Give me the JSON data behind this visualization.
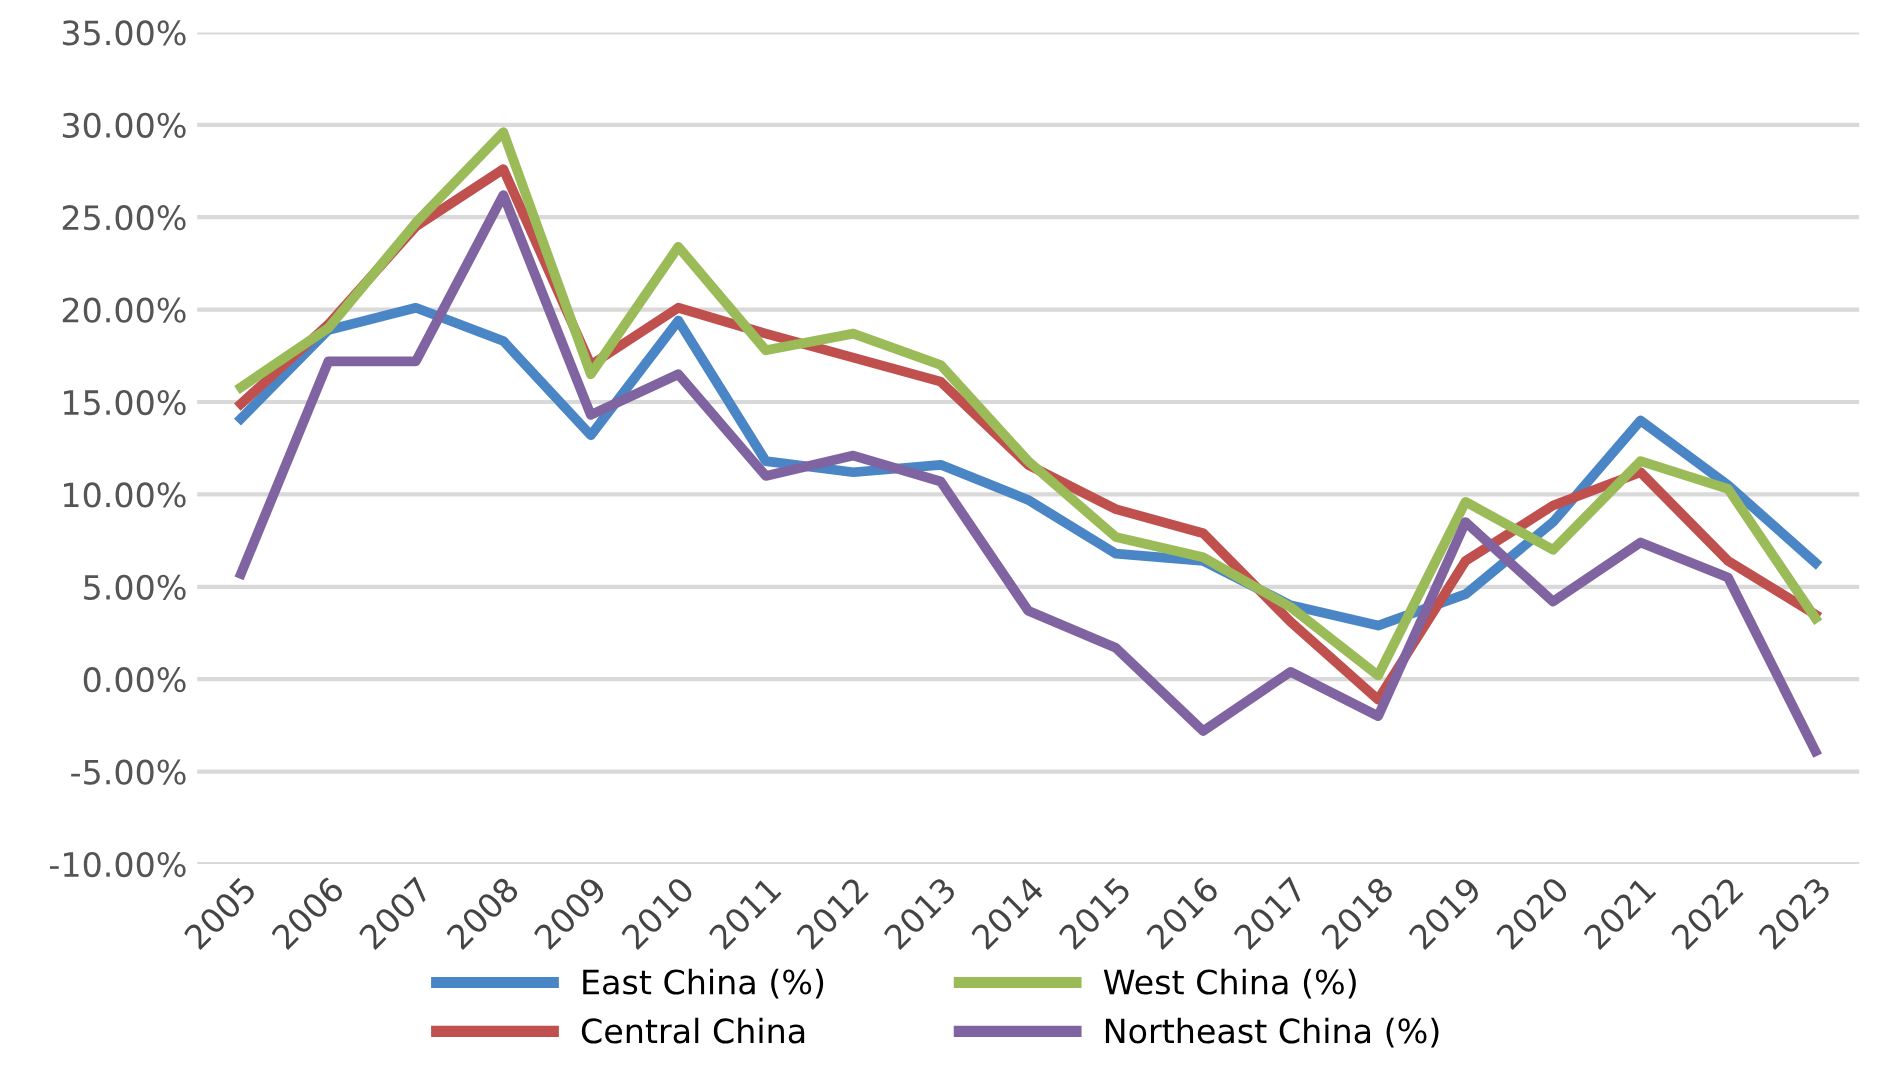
{
  "chart_data": {
    "type": "line",
    "categories": [
      "2005",
      "2006",
      "2007",
      "2008",
      "2009",
      "2010",
      "2011",
      "2012",
      "2013",
      "2014",
      "2015",
      "2016",
      "2017",
      "2018",
      "2019",
      "2020",
      "2021",
      "2022",
      "2023"
    ],
    "series": [
      {
        "name": "East China (%)",
        "color": "#4a86c6",
        "values": [
          14.1,
          18.9,
          20.1,
          18.3,
          13.2,
          19.4,
          11.8,
          11.2,
          11.6,
          9.7,
          6.8,
          6.4,
          4.0,
          2.9,
          4.6,
          8.5,
          14.0,
          10.5,
          6.3
        ]
      },
      {
        "name": "Central China",
        "color": "#c0504d",
        "values": [
          14.9,
          19.2,
          24.5,
          27.6,
          17.0,
          20.1,
          18.7,
          17.4,
          16.1,
          11.6,
          9.2,
          7.9,
          3.1,
          -1.1,
          6.4,
          9.4,
          11.2,
          6.4,
          3.5
        ]
      },
      {
        "name": "West China (%)",
        "color": "#9bbb59",
        "values": [
          15.8,
          19.0,
          24.7,
          29.6,
          16.5,
          23.4,
          17.8,
          18.7,
          17.0,
          11.8,
          7.7,
          6.6,
          3.9,
          0.2,
          9.6,
          7.0,
          11.8,
          10.3,
          3.3
        ]
      },
      {
        "name": "Northeast China (%)",
        "color": "#8064a2",
        "values": [
          5.7,
          17.2,
          17.2,
          26.2,
          14.3,
          16.5,
          11.0,
          12.1,
          10.7,
          3.7,
          1.7,
          -2.8,
          0.4,
          -2.0,
          8.5,
          4.2,
          7.4,
          5.5,
          -3.9
        ]
      }
    ],
    "ylim": [
      -10,
      35
    ],
    "yticks": [
      {
        "value": -10,
        "label": "-10.00%"
      },
      {
        "value": -5,
        "label": "-5.00%"
      },
      {
        "value": 0,
        "label": "0.00%"
      },
      {
        "value": 5,
        "label": "5.00%"
      },
      {
        "value": 10,
        "label": "10.00%"
      },
      {
        "value": 15,
        "label": "15.00%"
      },
      {
        "value": 20,
        "label": "20.00%"
      },
      {
        "value": 25,
        "label": "25.00%"
      },
      {
        "value": 30,
        "label": "30.00%"
      },
      {
        "value": 35,
        "label": "35.00%"
      }
    ],
    "grid": "y",
    "legend": "bottom",
    "marker": "none",
    "line_style": "solid"
  }
}
